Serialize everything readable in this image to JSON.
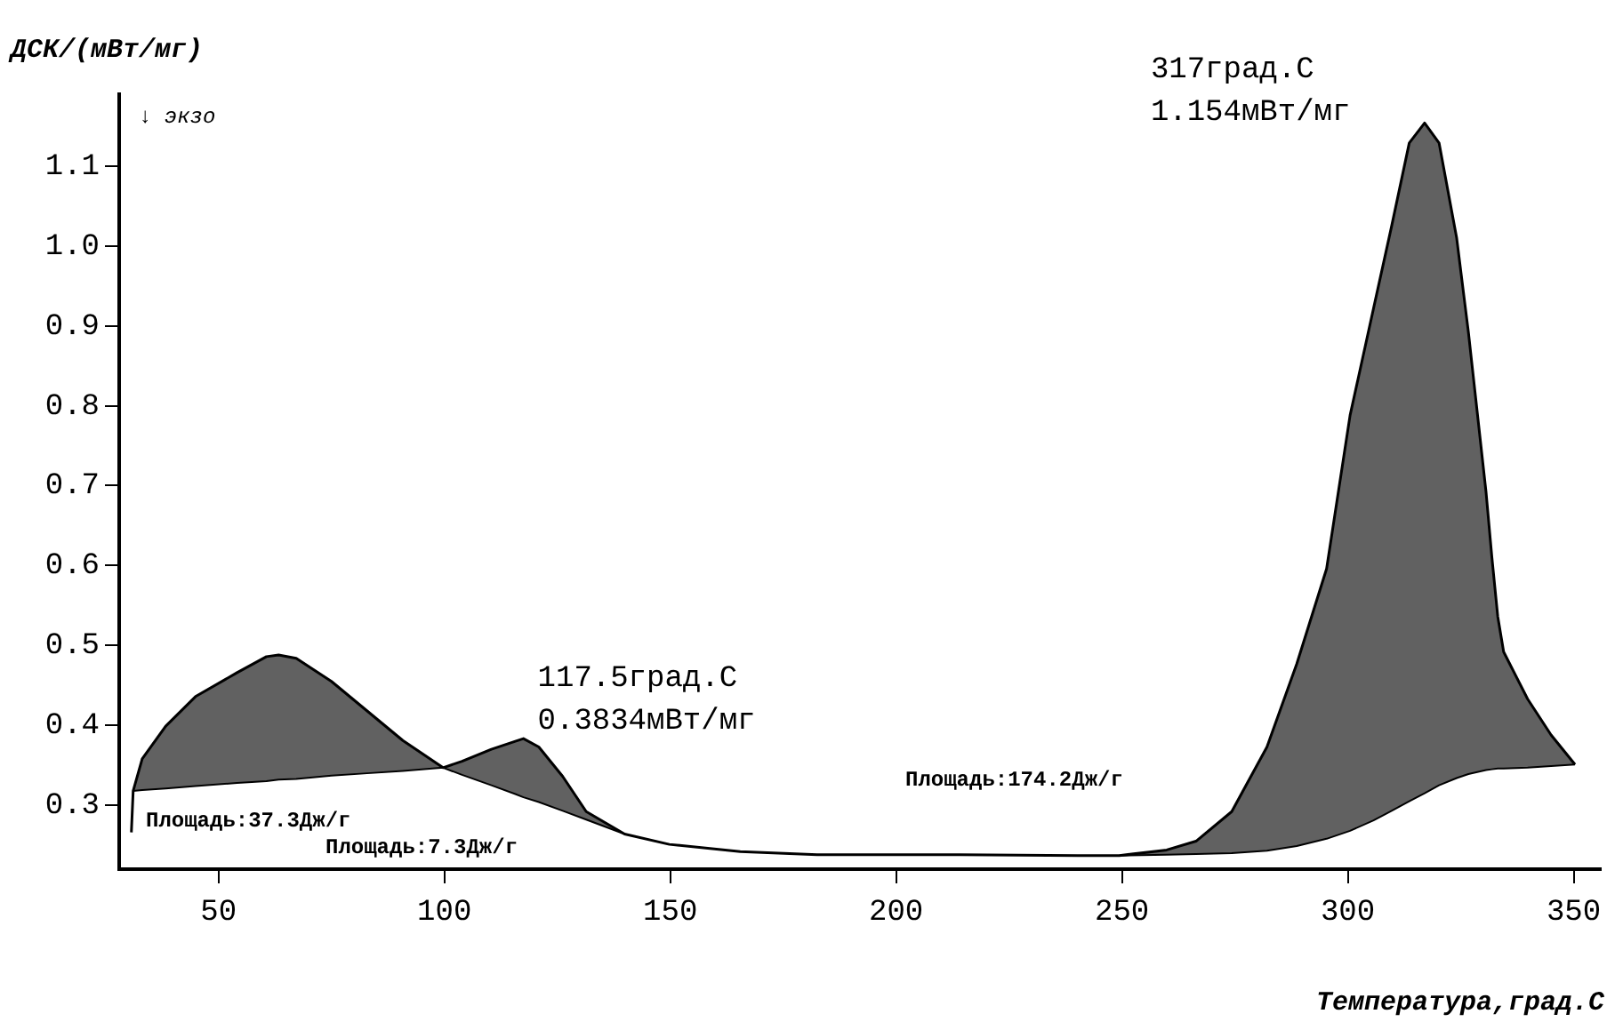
{
  "chart_data": {
    "type": "line",
    "xlabel": "Температура,град.C",
    "ylabel": "ДСК/(мВт/мг)",
    "xlim": [
      28,
      356
    ],
    "xticks": [
      50,
      100,
      150,
      200,
      250,
      300,
      350
    ],
    "ylim": [
      0.22,
      1.19
    ],
    "yticks": [
      0.3,
      0.4,
      0.5,
      0.6,
      0.7,
      0.8,
      0.9,
      {
        "value": 1.0,
        "label": "1.0"
      },
      1.1
    ],
    "grid": false,
    "legend": false,
    "marker": "none",
    "line_style": "solid",
    "series": [
      {
        "color": "#000000",
        "x": [
          30.7,
          31.1,
          33.1,
          38.3,
          44.9,
          54.1,
          60.6,
          63.3,
          67.2,
          75.0,
          82.9,
          90.8,
          99.7,
          103.9,
          110.4,
          115.7,
          117.5,
          120.9,
          126.2,
          131.4,
          139.9,
          149.8,
          165.5,
          182.5,
          214,
          240.2,
          249.4,
          259.9,
          266.4,
          274.3,
          282.1,
          288.7,
          295.3,
          300.5,
          305.7,
          309.7,
          313.6,
          317,
          320.2,
          324.1,
          326.7,
          330.6,
          331.9,
          333.2,
          334.5,
          339.8,
          345,
          350.3
        ],
        "values": [
          0.266,
          0.318,
          0.358,
          0.399,
          0.436,
          0.466,
          0.486,
          0.488,
          0.484,
          0.455,
          0.418,
          0.381,
          0.347,
          0.355,
          0.37,
          0.38,
          0.3834,
          0.373,
          0.336,
          0.292,
          0.264,
          0.251,
          0.242,
          0.238,
          0.238,
          0.237,
          0.237,
          0.244,
          0.255,
          0.292,
          0.373,
          0.477,
          0.596,
          0.788,
          0.922,
          1.025,
          1.129,
          1.154,
          1.129,
          1.01,
          0.892,
          0.692,
          0.61,
          0.536,
          0.492,
          0.433,
          0.388,
          0.351
        ]
      },
      {
        "type": "line",
        "color": "#000000",
        "x": [
          31.1,
          33.1,
          38.3,
          44.9,
          54.1,
          60.6,
          63.3,
          67.2,
          75.0,
          82.9,
          90.8,
          99.7,
          103.9,
          110.4,
          115.7,
          117.5,
          120.9,
          126.2,
          131.4,
          139.9
        ],
        "values": [
          0.318,
          0.319,
          0.321,
          0.324,
          0.328,
          0.33,
          0.332,
          0.333,
          0.337,
          0.34,
          0.343,
          0.347,
          0.338,
          0.325,
          0.314,
          0.31,
          0.304,
          0.293,
          0.282,
          0.264
        ],
        "lower": [
          0.318,
          0.319,
          0.321,
          0.324,
          0.328,
          0.33,
          0.332,
          0.333,
          0.337,
          0.34,
          0.343,
          0.347,
          0.338,
          0.325,
          0.314,
          0.31,
          0.304,
          0.293,
          0.282,
          0.264
        ],
        "upper": [
          0.318,
          0.358,
          0.399,
          0.436,
          0.466,
          0.486,
          0.488,
          0.484,
          0.455,
          0.418,
          0.381,
          0.347,
          0.355,
          0.37,
          0.38,
          0.3834,
          0.373,
          0.336,
          0.292,
          0.264
        ]
      },
      {
        "type": "line",
        "color": "#000000",
        "x": [
          249.4,
          259.9,
          266.4,
          274.3,
          282.1,
          288.7,
          295.3,
          300.5,
          305.7,
          309.7,
          313.6,
          317,
          320.2,
          324.1,
          326.7,
          330.6,
          331.9,
          333.2,
          334.5,
          339.8,
          345,
          350.3
        ],
        "values": [
          0.237,
          0.238,
          0.239,
          0.24,
          0.243,
          0.249,
          0.258,
          0.268,
          0.281,
          0.293,
          0.305,
          0.315,
          0.325,
          0.334,
          0.339,
          0.344,
          0.345,
          0.346,
          0.346,
          0.347,
          0.349,
          0.351
        ],
        "lower": [
          0.237,
          0.238,
          0.239,
          0.24,
          0.243,
          0.249,
          0.258,
          0.268,
          0.281,
          0.293,
          0.305,
          0.315,
          0.325,
          0.334,
          0.339,
          0.344,
          0.345,
          0.346,
          0.346,
          0.347,
          0.349,
          0.351
        ],
        "upper": [
          0.237,
          0.244,
          0.255,
          0.292,
          0.373,
          0.477,
          0.596,
          0.788,
          0.922,
          1.025,
          1.129,
          1.154,
          1.129,
          1.01,
          0.892,
          0.692,
          0.61,
          0.536,
          0.492,
          0.433,
          0.388,
          0.351
        ]
      }
    ],
    "annotations": [
      {
        "text": "117.5град.C\n0.3834мВт/мг",
        "x": 117.5,
        "y": 0.3834
      },
      {
        "text": "317град.C\n1.154мВт/мг",
        "x": 317,
        "y": 1.154
      },
      "Площадь:37.3Дж/г",
      "Площадь:7.3Дж/г",
      "Площадь:174.2Дж/г",
      "↓ экзо"
    ]
  }
}
